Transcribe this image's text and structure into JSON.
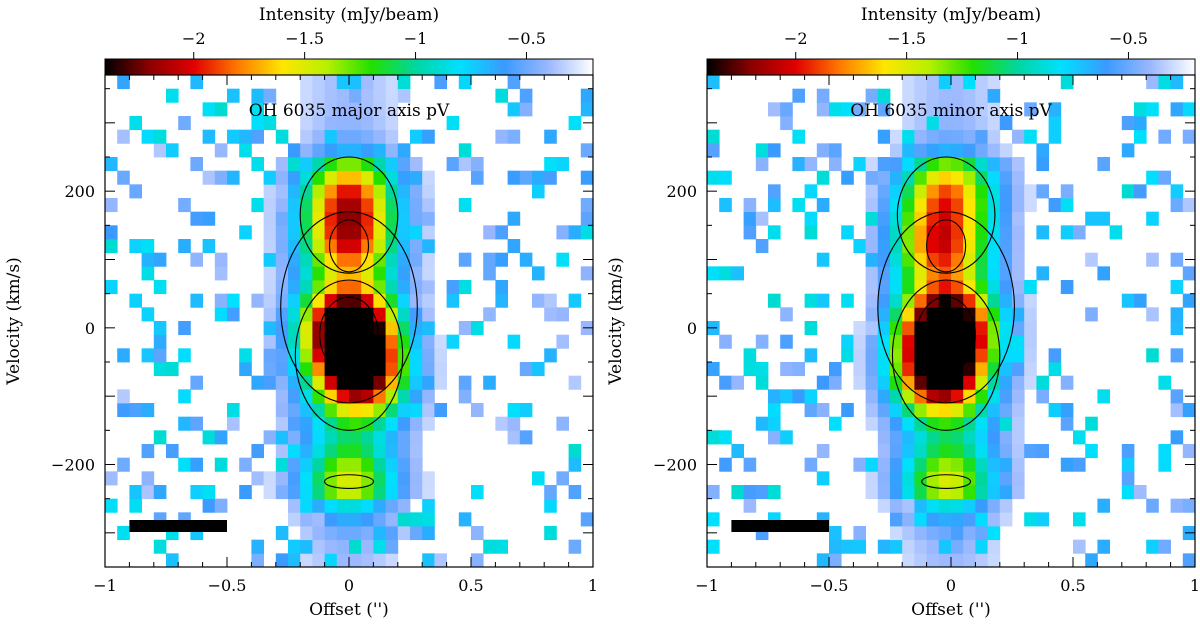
{
  "figure": {
    "colorbar_label": "Intensity (mJy/beam)",
    "colorbar_ticks": [
      -2,
      -1.5,
      -1,
      -0.5
    ],
    "colorbar_tick_labels": [
      "−2",
      "−1.5",
      "−1",
      "−0.5"
    ],
    "colorbar_range": [
      -2.4,
      -0.2
    ],
    "colormap": [
      "#000000",
      "#8b0000",
      "#e00000",
      "#ff7a00",
      "#ffe600",
      "#b8f000",
      "#22e000",
      "#00d6a0",
      "#00e0ff",
      "#3a9aff",
      "#9ab8ff",
      "#ffffff"
    ]
  },
  "chart_data": [
    {
      "type": "heatmap",
      "title": "OH 6035 major axis pV",
      "xlabel": "Offset ('')",
      "ylabel": "Velocity (km/s)",
      "xlim": [
        -1,
        1
      ],
      "ylim": [
        -350,
        370
      ],
      "xticks": [
        -1,
        -0.5,
        0,
        0.5,
        1
      ],
      "xtick_labels": [
        "−1",
        "−0.5",
        "0",
        "0.5",
        "1"
      ],
      "yticks": [
        -200,
        0,
        200
      ],
      "ytick_labels": [
        "−200",
        "0",
        "200"
      ],
      "contour_levels": [
        -0.9,
        -1.3,
        -1.8
      ],
      "beam_bar": {
        "x": [
          -0.9,
          -0.5
        ],
        "y": -290
      },
      "peak_components": [
        {
          "offset": 0.0,
          "velocity": 0,
          "intensity": -2.4
        },
        {
          "offset": 0.05,
          "velocity": -70,
          "intensity": -1.9
        },
        {
          "offset": 0.0,
          "velocity": 130,
          "intensity": -1.4
        },
        {
          "offset": 0.0,
          "velocity": 200,
          "intensity": -1.15
        },
        {
          "offset": 0.0,
          "velocity": -225,
          "intensity": -0.95
        }
      ]
    },
    {
      "type": "heatmap",
      "title": "OH 6035 minor axis pV",
      "xlabel": "Offset ('')",
      "ylabel": "Velocity (km/s)",
      "xlim": [
        -1,
        1
      ],
      "ylim": [
        -350,
        370
      ],
      "xticks": [
        -1,
        -0.5,
        0,
        0.5,
        1
      ],
      "xtick_labels": [
        "−1",
        "−0.5",
        "0",
        "0.5",
        "1"
      ],
      "yticks": [
        -200,
        0,
        200
      ],
      "ytick_labels": [
        "−200",
        "0",
        "200"
      ],
      "contour_levels": [
        -0.9,
        -1.3,
        -1.8
      ],
      "beam_bar": {
        "x": [
          -0.9,
          -0.5
        ],
        "y": -290
      },
      "peak_components": [
        {
          "offset": -0.02,
          "velocity": 0,
          "intensity": -2.4
        },
        {
          "offset": -0.05,
          "velocity": -70,
          "intensity": -1.9
        },
        {
          "offset": -0.05,
          "velocity": 120,
          "intensity": -1.4
        },
        {
          "offset": -0.02,
          "velocity": 200,
          "intensity": -1.15
        },
        {
          "offset": -0.02,
          "velocity": -225,
          "intensity": -0.95
        }
      ]
    }
  ]
}
